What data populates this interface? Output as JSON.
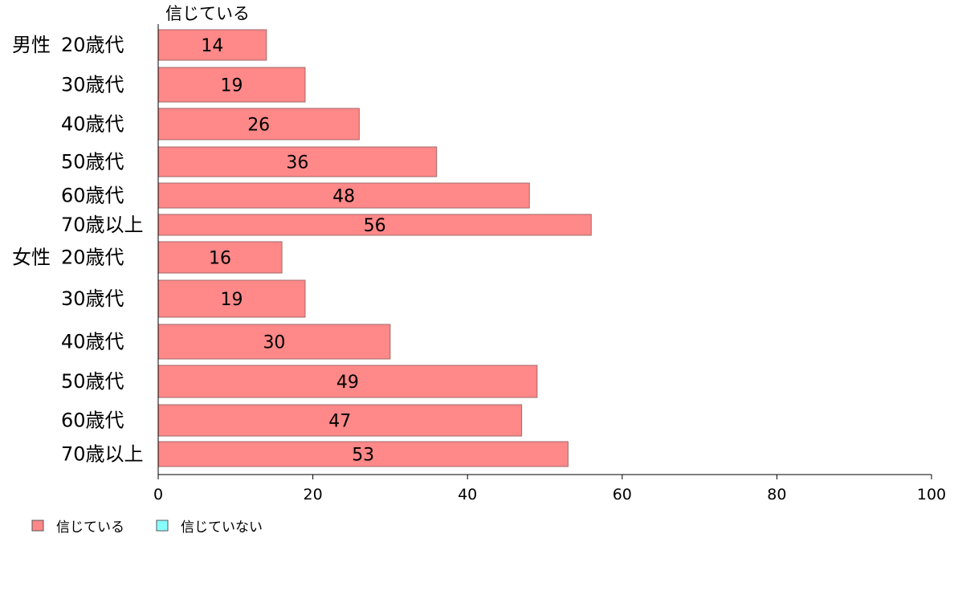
{
  "chart_data": {
    "type": "bar",
    "orientation": "horizontal",
    "column_header": "信じている",
    "groups": [
      {
        "name": "男性",
        "categories": [
          "20歳代",
          "30歳代",
          "40歳代",
          "50歳代",
          "60歳代",
          "70歳以上"
        ]
      },
      {
        "name": "女性",
        "categories": [
          "20歳代",
          "30歳代",
          "40歳代",
          "50歳代",
          "60歳代",
          "70歳以上"
        ]
      }
    ],
    "series": [
      {
        "name": "信じている",
        "color": "#ff8888",
        "values": [
          14,
          19,
          26,
          36,
          48,
          56,
          16,
          19,
          30,
          49,
          47,
          53
        ]
      },
      {
        "name": "信じていない",
        "color": "#88ffff",
        "values": []
      }
    ],
    "xlim": [
      0,
      100
    ],
    "xticks": [
      "0",
      "20",
      "40",
      "60",
      "80",
      "100"
    ],
    "legend_position": "bottom-left",
    "grid": false
  }
}
